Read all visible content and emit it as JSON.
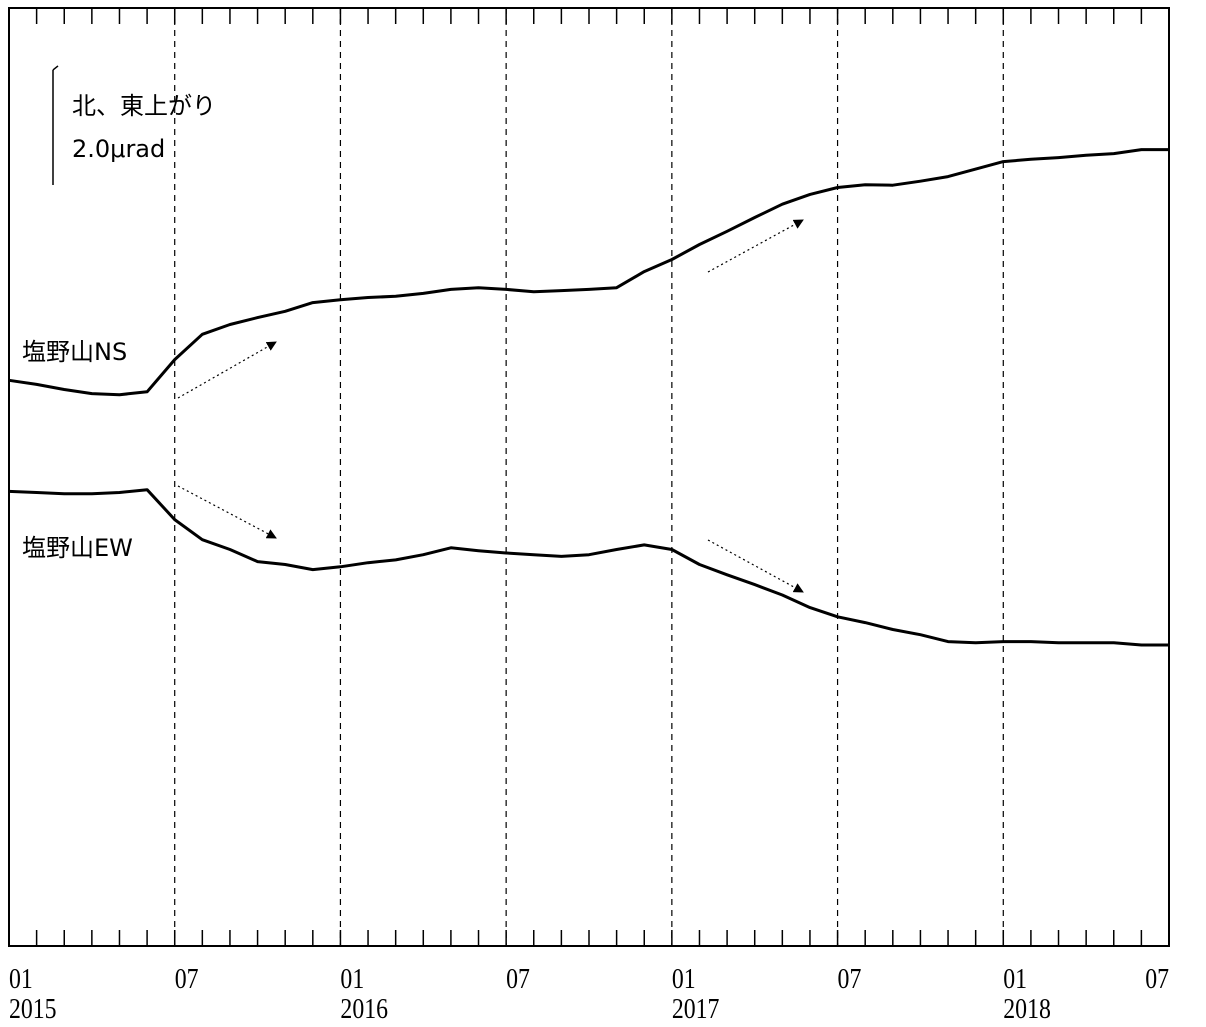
{
  "chart_data": {
    "type": "line",
    "x": [
      "2015-01",
      "2015-02",
      "2015-03",
      "2015-04",
      "2015-05",
      "2015-06",
      "2015-07",
      "2015-08",
      "2015-09",
      "2015-10",
      "2015-11",
      "2015-12",
      "2016-01",
      "2016-02",
      "2016-03",
      "2016-04",
      "2016-05",
      "2016-06",
      "2016-07",
      "2016-08",
      "2016-09",
      "2016-10",
      "2016-11",
      "2016-12",
      "2017-01",
      "2017-02",
      "2017-03",
      "2017-04",
      "2017-05",
      "2017-06",
      "2017-07",
      "2017-08",
      "2017-09",
      "2017-10",
      "2017-11",
      "2017-12",
      "2018-01",
      "2018-02",
      "2018-03",
      "2018-04",
      "2018-05",
      "2018-06",
      "2018-07"
    ],
    "xtick_labels": [
      {
        "x": "2015-01",
        "month": "01",
        "year": "2015"
      },
      {
        "x": "2015-07",
        "month": "07"
      },
      {
        "x": "2016-01",
        "month": "01",
        "year": "2016"
      },
      {
        "x": "2016-07",
        "month": "07"
      },
      {
        "x": "2017-01",
        "month": "01",
        "year": "2017"
      },
      {
        "x": "2017-07",
        "month": "07"
      },
      {
        "x": "2018-01",
        "month": "01",
        "year": "2018"
      },
      {
        "x": "2018-07",
        "month": "07"
      }
    ],
    "series": [
      {
        "name": "塩野山NS",
        "color": "#000000",
        "values": [
          9.83,
          9.76,
          9.67,
          9.6,
          9.58,
          9.63,
          10.19,
          10.63,
          10.8,
          10.92,
          11.03,
          11.18,
          11.23,
          11.27,
          11.29,
          11.34,
          11.41,
          11.44,
          11.41,
          11.37,
          11.39,
          11.41,
          11.44,
          11.72,
          11.93,
          12.19,
          12.42,
          12.66,
          12.89,
          13.06,
          13.18,
          13.23,
          13.22,
          13.29,
          13.37,
          13.5,
          13.63,
          13.67,
          13.7,
          13.74,
          13.77,
          13.84,
          13.84
        ]
      },
      {
        "name": "塩野山EW",
        "color": "#000000",
        "values": [
          7.9,
          7.88,
          7.86,
          7.86,
          7.88,
          7.93,
          7.41,
          7.06,
          6.89,
          6.68,
          6.63,
          6.54,
          6.59,
          6.66,
          6.71,
          6.8,
          6.92,
          6.87,
          6.83,
          6.8,
          6.77,
          6.8,
          6.89,
          6.97,
          6.89,
          6.63,
          6.45,
          6.28,
          6.1,
          5.88,
          5.72,
          5.62,
          5.5,
          5.41,
          5.29,
          5.27,
          5.29,
          5.29,
          5.27,
          5.27,
          5.27,
          5.23,
          5.23
        ]
      }
    ],
    "ylim": [
      0,
      16.3
    ],
    "grid": true,
    "scale_bar": {
      "label": "北、東上がり",
      "value_label": "2.0μrad",
      "value": 2.0
    }
  }
}
